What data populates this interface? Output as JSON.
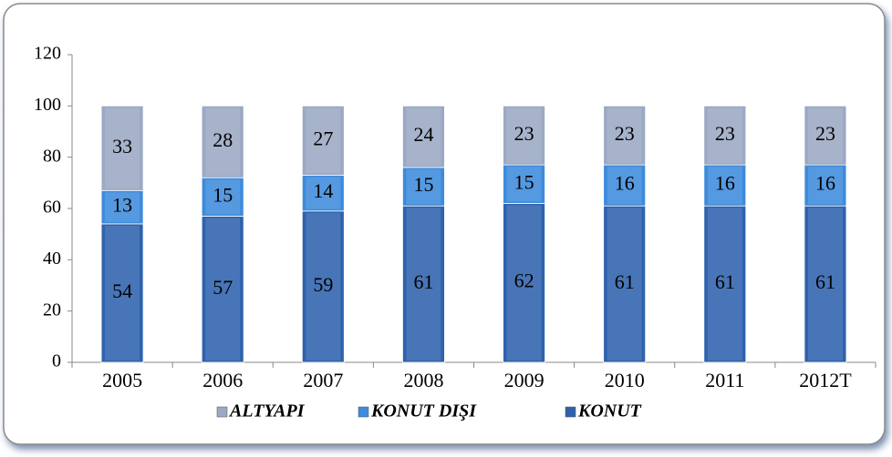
{
  "chart_data": {
    "type": "stacked_bar",
    "categories": [
      "2005",
      "2006",
      "2007",
      "2008",
      "2009",
      "2010",
      "2011",
      "2012T"
    ],
    "series": [
      {
        "name": "KONUT",
        "color": "#2f62ad",
        "values": [
          54,
          57,
          59,
          61,
          62,
          61,
          61,
          61
        ]
      },
      {
        "name": "KONUT DIŞI",
        "color": "#3e8bdc",
        "values": [
          13,
          15,
          14,
          15,
          15,
          16,
          16,
          16
        ]
      },
      {
        "name": "ALTYAPI",
        "color": "#9ba9c3",
        "values": [
          33,
          28,
          27,
          24,
          23,
          23,
          23,
          23
        ]
      }
    ],
    "ylim": [
      0,
      120
    ],
    "yticks": [
      0,
      20,
      40,
      60,
      80,
      100,
      120
    ],
    "legend": "bottom"
  }
}
